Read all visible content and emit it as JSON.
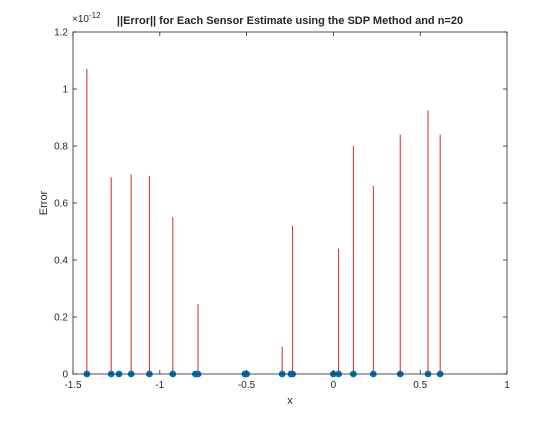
{
  "chart_data": {
    "type": "stem",
    "title": "||Error|| for Each Sensor Estimate using the SDP Method and n=20",
    "xlabel": "x",
    "ylabel": "Error",
    "y_exponent_label": "× 10^-12",
    "xlim": [
      -1.5,
      1
    ],
    "ylim": [
      0,
      1.2
    ],
    "xticks": [
      -1.5,
      -1,
      -0.5,
      0,
      0.5,
      1
    ],
    "xtick_labels": [
      "-1.5",
      "-1",
      "-0.5",
      "0",
      "0.5",
      "1"
    ],
    "yticks": [
      0,
      0.2,
      0.4,
      0.6,
      0.8,
      1,
      1.2
    ],
    "ytick_labels": [
      "0",
      "0.2",
      "0.4",
      "0.6",
      "0.8",
      "1",
      "1.2"
    ],
    "grid": false,
    "stem_color": "#d62728",
    "marker_color": "#0072bd",
    "stems": {
      "x": [
        -1.42,
        -1.28,
        -1.165,
        -1.06,
        -0.925,
        -0.78,
        -0.295,
        -0.235,
        0.03,
        0.115,
        0.23,
        0.385,
        0.545,
        0.615
      ],
      "y": [
        1.07,
        0.69,
        0.7,
        0.695,
        0.55,
        0.245,
        0.095,
        0.52,
        0.44,
        0.8,
        0.66,
        0.84,
        0.925,
        0.84
      ]
    },
    "markers": {
      "x": [
        -1.42,
        -1.28,
        -1.235,
        -1.165,
        -1.06,
        -0.925,
        -0.795,
        -0.78,
        -0.51,
        -0.5,
        -0.295,
        -0.245,
        -0.235,
        0.0,
        0.03,
        0.115,
        0.23,
        0.385,
        0.545,
        0.615
      ],
      "y": [
        0,
        0,
        0,
        0,
        0,
        0,
        0,
        0,
        0,
        0,
        0,
        0,
        0,
        0,
        0,
        0,
        0,
        0,
        0,
        0
      ]
    }
  }
}
